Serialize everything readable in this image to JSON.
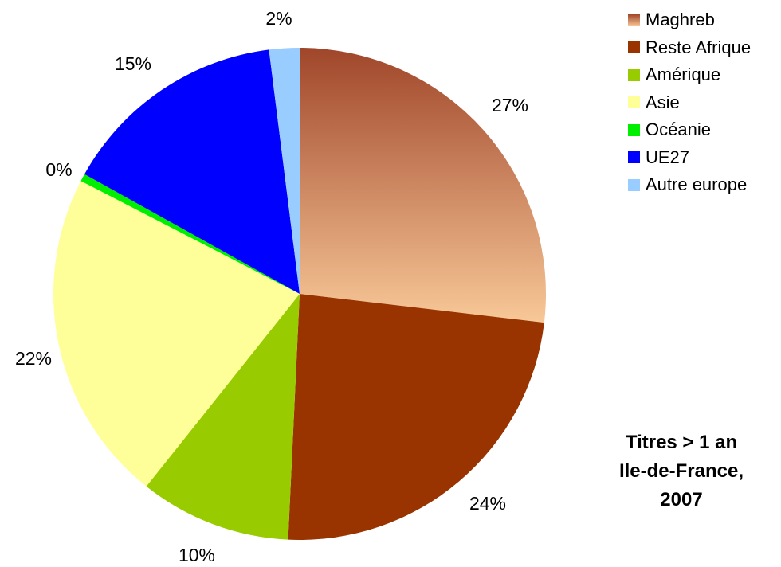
{
  "chart_data": {
    "type": "pie",
    "title": [
      "Titres > 1 an",
      "Ile-de-France,",
      "2007"
    ],
    "categories": [
      "Maghreb",
      "Reste Afrique",
      "Amérique",
      "Asie",
      "Océanie",
      "UE27",
      "Autre europe"
    ],
    "values": [
      27,
      24,
      10,
      22,
      0.5,
      15,
      2
    ],
    "labels": [
      "27%",
      "24%",
      "10%",
      "22%",
      "0%",
      "15%",
      "2%"
    ],
    "colors": [
      "#d9a07a",
      "#993300",
      "#99cc00",
      "#ffff99",
      "#00ee00",
      "#0000ff",
      "#99ccff"
    ],
    "gradient_first_slice": {
      "from": "#a0462a",
      "to": "#f8c898"
    },
    "legend_position": "right",
    "start_angle_deg": 0,
    "direction": "clockwise"
  }
}
